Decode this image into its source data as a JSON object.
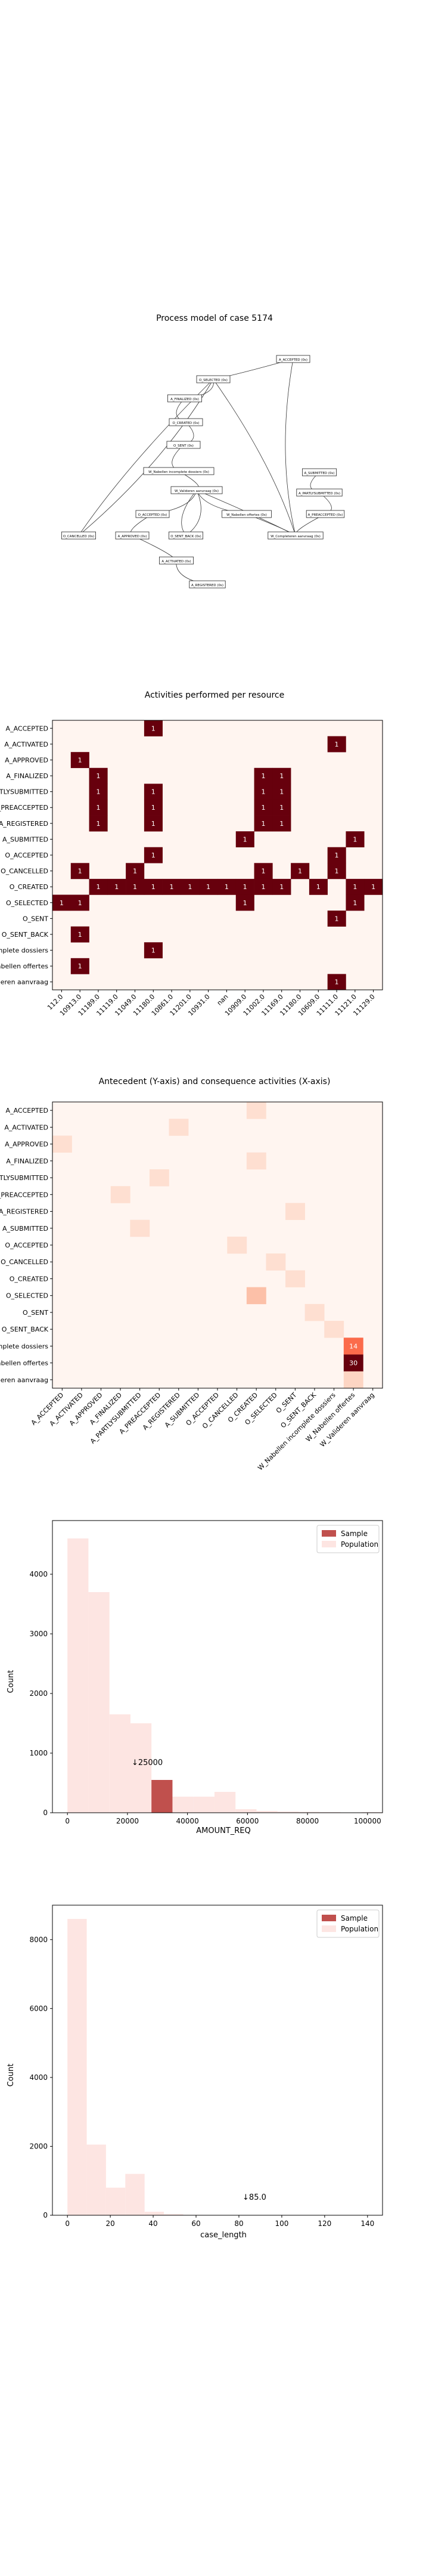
{
  "chart_data": [
    {
      "type": "diagram",
      "title": "Process model of case 5174",
      "nodes": [
        {
          "id": "A_ACCEPTED",
          "label": "A_ACCEPTED (0s)"
        },
        {
          "id": "O_SELECTED",
          "label": "O_SELECTED (0s)"
        },
        {
          "id": "A_FINALIZED",
          "label": "A_FINALIZED (0s)"
        },
        {
          "id": "O_CREATED",
          "label": "O_CREATED (0s)"
        },
        {
          "id": "O_SENT",
          "label": "O_SENT (0s)"
        },
        {
          "id": "W_Nabellen",
          "label": "W_Nabellen incomplete dossiers (0s)"
        },
        {
          "id": "A_SUBMITTED",
          "label": "A_SUBMITTED (0s)"
        },
        {
          "id": "W_Valideren",
          "label": "W_Valideren aanvraag (0s)"
        },
        {
          "id": "A_PARTLYSUBMITTED",
          "label": "A_PARTLYSUBMITTED (0s)"
        },
        {
          "id": "O_ACCEPTED",
          "label": "O_ACCEPTED (0s)"
        },
        {
          "id": "W_Nabellen_offertes",
          "label": "W_Nabellen offertes (0s)"
        },
        {
          "id": "A_PREACCEPTED",
          "label": "A_PREACCEPTED (0s)"
        },
        {
          "id": "O_CANCELLED",
          "label": "O_CANCELLED (0s)"
        },
        {
          "id": "A_APPROVED",
          "label": "A_APPROVED (0s)"
        },
        {
          "id": "O_SENT_BACK",
          "label": "O_SENT_BACK (0s)"
        },
        {
          "id": "W_Completeren",
          "label": "W_Completeren aanvraag (0s)"
        },
        {
          "id": "A_ACTIVATED",
          "label": "A_ACTIVATED (0s)"
        },
        {
          "id": "A_REGISTERED",
          "label": "A_REGISTERED (0s)"
        }
      ]
    },
    {
      "type": "heatmap",
      "title": "Activities performed per resource",
      "rows": [
        "A_ACCEPTED",
        "A_ACTIVATED",
        "A_APPROVED",
        "A_FINALIZED",
        "A_PARTLYSUBMITTED",
        "A_PREACCEPTED",
        "A_REGISTERED",
        "A_SUBMITTED",
        "O_ACCEPTED",
        "O_CANCELLED",
        "O_CREATED",
        "O_SELECTED",
        "O_SENT",
        "O_SENT_BACK",
        "W_Nabellen incomplete dossiers",
        "W_Nabellen offertes",
        "W_Valideren aanvraag"
      ],
      "columns": [
        "112.0",
        "10913.0",
        "11189.0",
        "11119.0",
        "11049.0",
        "11180.0",
        "10861.0",
        "11201.0",
        "10931.0",
        "nan",
        "10909.0",
        "11002.0",
        "11169.0",
        "11180.0",
        "10609.0",
        "11111.0",
        "11121.0",
        "11129.0"
      ],
      "cells": [
        [
          0,
          5,
          1
        ],
        [
          1,
          15,
          1
        ],
        [
          2,
          1,
          1
        ],
        [
          3,
          2,
          1
        ],
        [
          3,
          11,
          1
        ],
        [
          3,
          12,
          1
        ],
        [
          4,
          2,
          1
        ],
        [
          4,
          5,
          1
        ],
        [
          4,
          11,
          1
        ],
        [
          4,
          12,
          1
        ],
        [
          5,
          2,
          1
        ],
        [
          5,
          5,
          1
        ],
        [
          5,
          11,
          1
        ],
        [
          5,
          12,
          1
        ],
        [
          6,
          2,
          1
        ],
        [
          6,
          5,
          1
        ],
        [
          6,
          11,
          1
        ],
        [
          6,
          12,
          1
        ],
        [
          7,
          10,
          1
        ],
        [
          7,
          16,
          1
        ],
        [
          8,
          5,
          1
        ],
        [
          8,
          15,
          1
        ],
        [
          9,
          1,
          1
        ],
        [
          9,
          4,
          1
        ],
        [
          9,
          11,
          1
        ],
        [
          9,
          13,
          1
        ],
        [
          9,
          15,
          1
        ],
        [
          10,
          2,
          1
        ],
        [
          10,
          3,
          1
        ],
        [
          10,
          4,
          1
        ],
        [
          10,
          5,
          1
        ],
        [
          10,
          6,
          1
        ],
        [
          10,
          7,
          1
        ],
        [
          10,
          8,
          1
        ],
        [
          10,
          9,
          1
        ],
        [
          10,
          10,
          1
        ],
        [
          10,
          11,
          1
        ],
        [
          10,
          12,
          1
        ],
        [
          10,
          14,
          1
        ],
        [
          10,
          16,
          1
        ],
        [
          10,
          17,
          1
        ],
        [
          11,
          0,
          1
        ],
        [
          11,
          1,
          1
        ],
        [
          11,
          10,
          1
        ],
        [
          11,
          16,
          1
        ],
        [
          12,
          15,
          1
        ],
        [
          13,
          1,
          1
        ],
        [
          14,
          5,
          1
        ],
        [
          15,
          1,
          1
        ],
        [
          16,
          15,
          1
        ]
      ]
    },
    {
      "type": "heatmap",
      "title": "Antecedent (Y-axis) and consequence activities (X-axis)",
      "rows": [
        "A_ACCEPTED",
        "A_ACTIVATED",
        "A_APPROVED",
        "A_FINALIZED",
        "A_PARTLYSUBMITTED",
        "A_PREACCEPTED",
        "A_REGISTERED",
        "A_SUBMITTED",
        "O_ACCEPTED",
        "O_CANCELLED",
        "O_CREATED",
        "O_SELECTED",
        "O_SENT",
        "O_SENT_BACK",
        "W_Nabellen incomplete dossiers",
        "W_Nabellen offertes",
        "W_Valideren aanvraag"
      ],
      "columns": [
        "A_ACCEPTED",
        "A_ACTIVATED",
        "A_APPROVED",
        "A_FINALIZED",
        "A_PARTLYSUBMITTED",
        "A_PREACCEPTED",
        "A_REGISTERED",
        "A_SUBMITTED",
        "O_ACCEPTED",
        "O_CANCELLED",
        "O_CREATED",
        "O_SELECTED",
        "O_SENT",
        "O_SENT_BACK",
        "W_Nabellen incomplete dossiers",
        "W_Nabellen offertes",
        "W_Valideren aanvraag"
      ],
      "cells": [
        [
          14,
          15,
          14,
          "14"
        ],
        [
          15,
          15,
          30,
          "30"
        ],
        [
          0,
          10,
          1
        ],
        [
          1,
          6,
          1
        ],
        [
          2,
          0,
          1
        ],
        [
          3,
          10,
          1
        ],
        [
          4,
          5,
          1
        ],
        [
          5,
          3,
          1
        ],
        [
          6,
          12,
          1
        ],
        [
          7,
          4,
          1
        ],
        [
          8,
          9,
          1
        ],
        [
          9,
          11,
          1
        ],
        [
          10,
          12,
          1
        ],
        [
          11,
          10,
          4
        ],
        [
          12,
          13,
          1
        ],
        [
          13,
          14,
          1
        ],
        [
          16,
          15,
          2
        ]
      ]
    },
    {
      "type": "bar",
      "xlabel": "AMOUNT_REQ",
      "ylabel": "Count",
      "xlim": [
        -5000,
        105000
      ],
      "ylim": [
        0,
        4900
      ],
      "xticks": [
        0,
        20000,
        40000,
        60000,
        80000,
        100000
      ],
      "yticks": [
        0,
        1000,
        2000,
        3000,
        4000
      ],
      "bin_width": 7000,
      "series": [
        {
          "name": "Population",
          "bins": [
            [
              0,
              4600
            ],
            [
              7000,
              3700
            ],
            [
              14000,
              1650
            ],
            [
              21000,
              1500
            ],
            [
              28000,
              550
            ],
            [
              35000,
              270
            ],
            [
              42000,
              270
            ],
            [
              49000,
              350
            ],
            [
              56000,
              60
            ],
            [
              63000,
              30
            ],
            [
              70000,
              20
            ],
            [
              77000,
              15
            ],
            [
              84000,
              10
            ],
            [
              91000,
              5
            ],
            [
              98000,
              10
            ]
          ]
        },
        {
          "name": "Sample",
          "bins": [
            [
              28000,
              550
            ]
          ]
        }
      ],
      "annotation": "↓25000",
      "annotation_at": [
        25000,
        800
      ]
    },
    {
      "type": "bar",
      "xlabel": "case_length",
      "ylabel": "Count",
      "xlim": [
        -7,
        147
      ],
      "ylim": [
        0,
        9000
      ],
      "xticks": [
        0,
        20,
        40,
        60,
        80,
        100,
        120,
        140
      ],
      "yticks": [
        0,
        2000,
        4000,
        6000,
        8000
      ],
      "bin_width": 9,
      "series": [
        {
          "name": "Population",
          "bins": [
            [
              0,
              8600
            ],
            [
              9,
              2050
            ],
            [
              18,
              800
            ],
            [
              27,
              1200
            ],
            [
              36,
              100
            ],
            [
              45,
              30
            ],
            [
              54,
              10
            ],
            [
              63,
              5
            ]
          ]
        },
        {
          "name": "Sample",
          "bins": []
        }
      ],
      "annotation": "↓85.0",
      "annotation_at": [
        85,
        450
      ]
    }
  ]
}
